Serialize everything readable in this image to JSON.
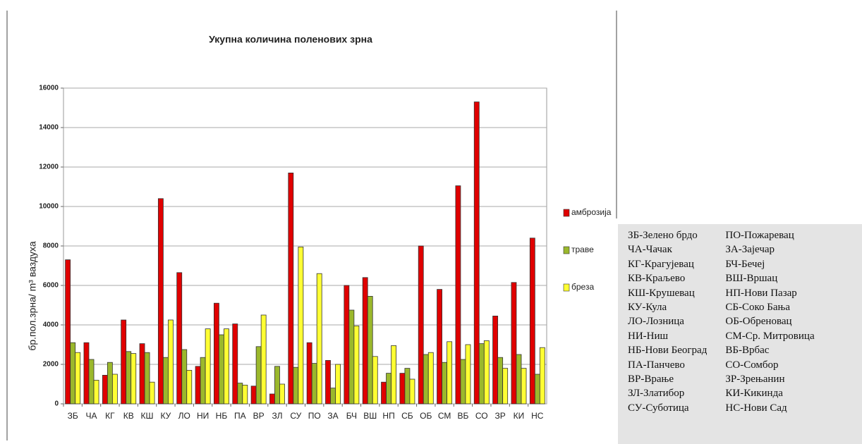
{
  "chart_data": {
    "type": "bar",
    "title": "Укупна количина поленових зрна",
    "y_label": "бр.пол.зрна/ m³ ваздуха",
    "categories": [
      "ЗБ",
      "ЧА",
      "КГ",
      "КВ",
      "КШ",
      "КУ",
      "ЛО",
      "НИ",
      "НБ",
      "ПА",
      "ВР",
      "ЗЛ",
      "СУ",
      "ПО",
      "ЗА",
      "БЧ",
      "ВШ",
      "НП",
      "СБ",
      "ОБ",
      "СМ",
      "ВБ",
      "СО",
      "ЗР",
      "КИ",
      "НС"
    ],
    "series": [
      {
        "name": "амброзија",
        "color": "#e00000",
        "values": [
          7300,
          3100,
          1450,
          4250,
          3050,
          10400,
          6650,
          1900,
          5100,
          4050,
          900,
          500,
          11700,
          3100,
          2200,
          6000,
          6400,
          1100,
          1550,
          8000,
          5800,
          11050,
          15300,
          4450,
          6150,
          8400
        ]
      },
      {
        "name": "траве",
        "color": "#9bb82c",
        "values": [
          3100,
          2250,
          2100,
          2650,
          2600,
          2350,
          2750,
          2350,
          3500,
          1050,
          2900,
          1900,
          1850,
          2050,
          800,
          4750,
          5450,
          1550,
          1800,
          2500,
          2100,
          2250,
          3050,
          2350,
          2500,
          1500
        ]
      },
      {
        "name": "бреза",
        "color": "#ffff33",
        "values": [
          2600,
          1200,
          1500,
          2550,
          1100,
          4250,
          1700,
          3800,
          3800,
          950,
          4500,
          1000,
          7950,
          6600,
          2000,
          3950,
          2400,
          2950,
          1250,
          2600,
          3150,
          3000,
          3200,
          1800,
          1800,
          2850
        ]
      }
    ],
    "ylim": [
      0,
      16000
    ],
    "yticks": [
      0,
      2000,
      4000,
      6000,
      8000,
      10000,
      12000,
      14000,
      16000
    ],
    "grid": true,
    "legend": "right"
  },
  "abbreviations": {
    "columns": [
      [
        "ЗБ-Зелено брдо",
        "ЧА-Чачак",
        "КГ-Крагујевац",
        "КВ-Краљево",
        "КШ-Крушевац",
        "КУ-Кула",
        "ЛО-Лозница",
        "НИ-Ниш",
        "НБ-Нови Београд",
        "ПА-Панчево",
        "ВР-Врање",
        "ЗЛ-Златибор",
        "СУ-Суботица"
      ],
      [
        "ПО-Пожаревац",
        "ЗА-Зајечар",
        "БЧ-Бечеј",
        "ВШ-Вршац",
        "НП-Нови Пазар",
        "СБ-Соко Бања",
        "ОБ-Обреновац",
        "СМ-Ср. Митровица",
        "ВБ-Врбас",
        "СО-Сомбор",
        "ЗР-Зрењанин",
        "КИ-Кикинда",
        "НС-Нови Сад"
      ]
    ]
  }
}
